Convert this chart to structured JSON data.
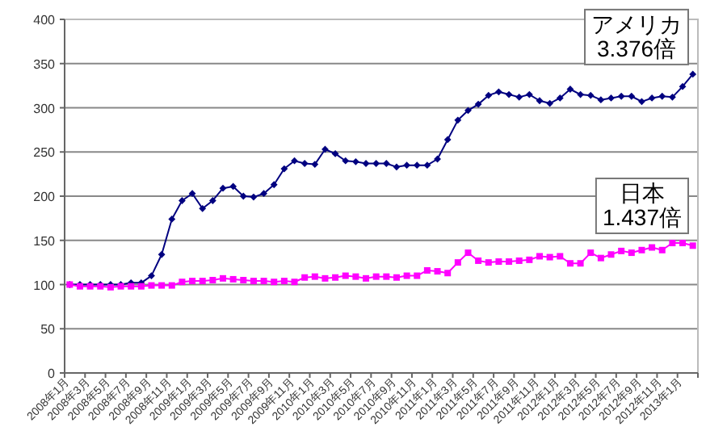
{
  "chart_data": {
    "type": "line",
    "categories": [
      "2008年1月",
      null,
      "2008年3月",
      null,
      "2008年5月",
      null,
      "2008年7月",
      null,
      "2008年9月",
      null,
      "2008年11月",
      null,
      "2009年1月",
      null,
      "2009年3月",
      null,
      "2009年5月",
      null,
      "2009年7月",
      null,
      "2009年9月",
      null,
      "2009年11月",
      null,
      "2010年1月",
      null,
      "2010年3月",
      null,
      "2010年5月",
      null,
      "2010年7月",
      null,
      "2010年9月",
      null,
      "2010年11月",
      null,
      "2011年1月",
      null,
      "2011年3月",
      null,
      "2011年5月",
      null,
      "2011年7月",
      null,
      "2011年9月",
      null,
      "2011年11月",
      null,
      "2012年1月",
      null,
      "2012年3月",
      null,
      "2012年5月",
      null,
      "2012年7月",
      null,
      "2012年9月",
      null,
      "2012年11月",
      null,
      "2013年1月",
      null
    ],
    "series": [
      {
        "color": "#000080",
        "marker": "diamond",
        "values": [
          100,
          100,
          100,
          100,
          100,
          100,
          102,
          102,
          110,
          134,
          174,
          195,
          203,
          186,
          195,
          209,
          211,
          200,
          199,
          203,
          213,
          231,
          240,
          237,
          236,
          253,
          248,
          240,
          239,
          237,
          237,
          237,
          233,
          235,
          235,
          235,
          242,
          264,
          286,
          297,
          304,
          314,
          318,
          315,
          312,
          315,
          308,
          305,
          311,
          321,
          315,
          314,
          309,
          311,
          313,
          313,
          307,
          311,
          313,
          312,
          324,
          338
        ]
      },
      {
        "color": "#ff00ff",
        "marker": "square",
        "values": [
          100,
          98,
          98,
          98,
          97,
          98,
          98,
          98,
          99,
          99,
          99,
          103,
          104,
          104,
          105,
          107,
          106,
          105,
          104,
          104,
          103,
          104,
          103,
          108,
          109,
          107,
          108,
          110,
          109,
          107,
          109,
          109,
          108,
          110,
          110,
          116,
          115,
          113,
          125,
          136,
          127,
          125,
          126,
          126,
          127,
          128,
          132,
          131,
          132,
          124,
          124,
          136,
          130,
          134,
          138,
          136,
          139,
          142,
          139,
          147,
          147,
          144
        ]
      }
    ],
    "ylim": [
      0,
      400
    ],
    "yticks": [
      0,
      50,
      100,
      150,
      200,
      250,
      300,
      350,
      400
    ],
    "grid": "y",
    "line_style": "solid",
    "annotations": [
      "アメリカ\n3.376倍",
      "日本\n1.437倍"
    ]
  }
}
